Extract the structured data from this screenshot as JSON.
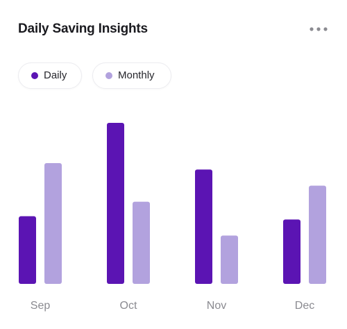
{
  "card": {
    "title": "Daily Saving Insights",
    "menu_icon": "more-horizontal-icon"
  },
  "legend": {
    "items": [
      {
        "label": "Daily",
        "color": "#5b14b3"
      },
      {
        "label": "Monthly",
        "color": "#b2a2de"
      }
    ]
  },
  "colors": {
    "daily": "#5b14b3",
    "monthly": "#b2a2de",
    "axis_label": "#8a8a90"
  },
  "chart_data": {
    "type": "bar",
    "title": "Daily Saving Insights",
    "categories": [
      "Sep",
      "Oct",
      "Nov",
      "Dec"
    ],
    "series": [
      {
        "name": "Daily",
        "values": [
          42,
          100,
          71,
          40
        ]
      },
      {
        "name": "Monthly",
        "values": [
          75,
          51,
          30,
          61
        ]
      }
    ],
    "xlabel": "",
    "ylabel": "",
    "ylim": [
      0,
      100
    ],
    "grid": false,
    "legend_position": "top-left"
  }
}
